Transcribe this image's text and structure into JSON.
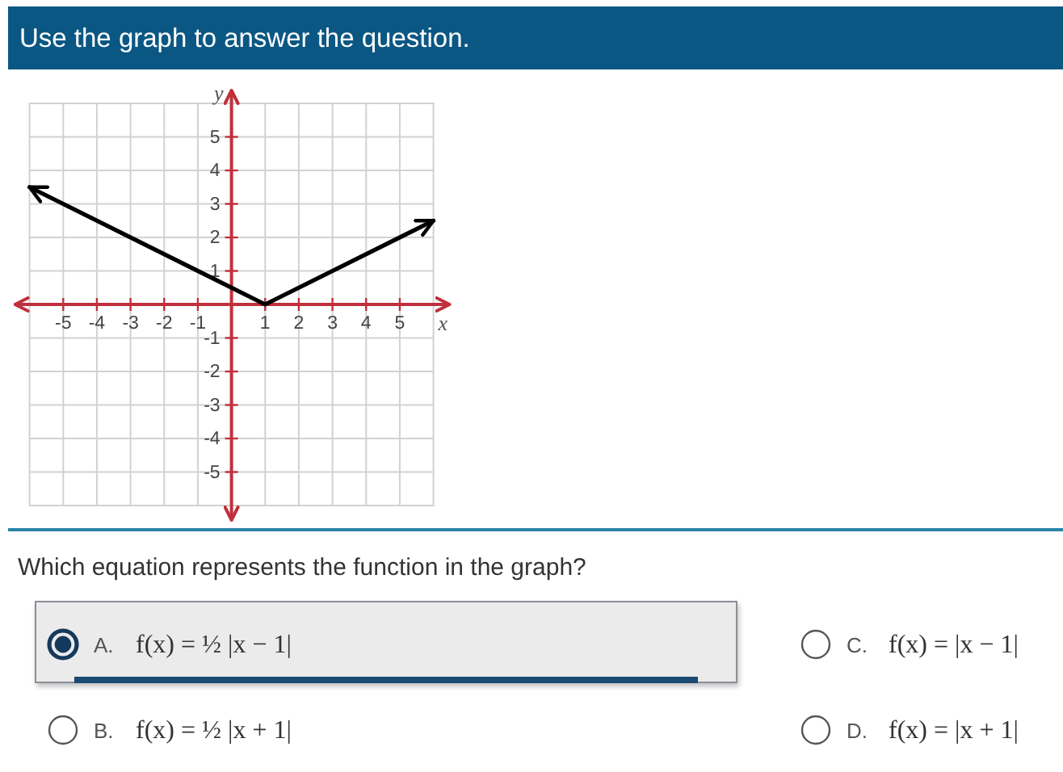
{
  "chart_data": {
    "type": "line",
    "title": "Use the graph to answer the question.",
    "xlabel": "x",
    "ylabel": "y",
    "x": [
      -6,
      1,
      6
    ],
    "series": [
      {
        "color": "#000000",
        "values": [
          3.5,
          0,
          2.5
        ]
      }
    ],
    "xlim": [
      -6,
      6
    ],
    "ylim": [
      -6,
      6
    ],
    "xticks": [
      -5,
      -4,
      -3,
      -2,
      -1,
      1,
      2,
      3,
      4,
      5
    ],
    "yticks": [
      -5,
      -4,
      -3,
      -2,
      -1,
      1,
      2,
      3,
      4,
      5
    ],
    "grid": true,
    "marker": "none",
    "line_style": "solid",
    "annotations": [
      "Which equation represents the function in the graph?",
      "A.",
      "f(x) = ½ |x − 1|",
      "B.",
      "f(x) = ½ |x + 1|",
      "C.",
      "f(x) = |x − 1|",
      "D.",
      "f(x) = |x + 1|"
    ]
  }
}
